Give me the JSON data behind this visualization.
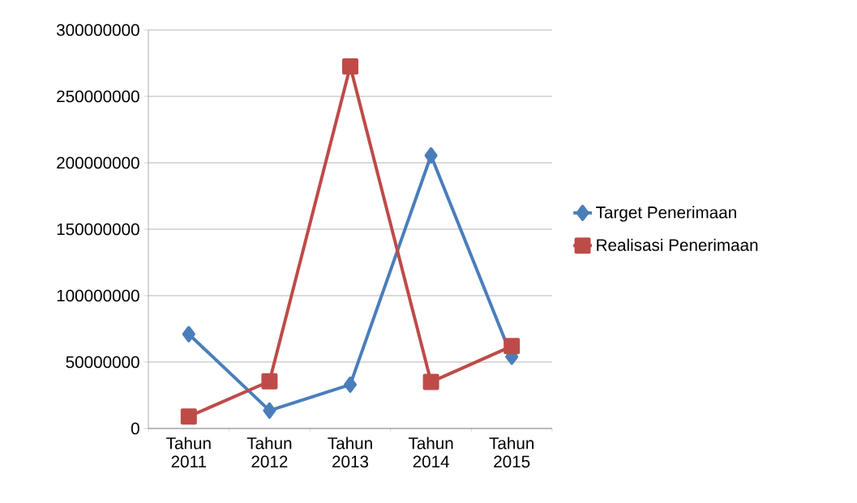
{
  "chart_data": {
    "type": "line",
    "categories": [
      "Tahun 2011",
      "Tahun 2012",
      "Tahun 2013",
      "Tahun 2014",
      "Tahun 2015"
    ],
    "series": [
      {
        "name": "Target Penerimaan",
        "color": "#4a7ebb",
        "marker": "diamond",
        "values": [
          71000000,
          13500000,
          33000000,
          205500000,
          54000000
        ]
      },
      {
        "name": "Realisasi Penerimaan",
        "color": "#be4b48",
        "marker": "square",
        "values": [
          9000000,
          35500000,
          272500000,
          35000000,
          62000000
        ]
      }
    ],
    "ylim": [
      0,
      300000000
    ],
    "yticks": [
      0,
      50000000,
      100000000,
      150000000,
      200000000,
      250000000,
      300000000
    ],
    "grid": "y",
    "legend": "right"
  }
}
